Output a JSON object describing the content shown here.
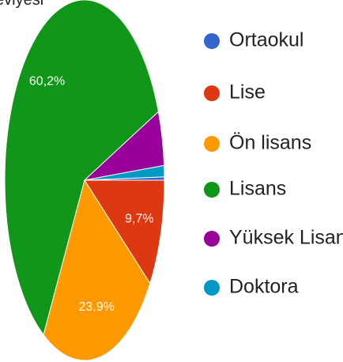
{
  "chart_data": {
    "type": "pie",
    "title": "eviyesi",
    "categories": [
      "Ortaokul",
      "Lise",
      "Ön lisans",
      "Lisans",
      "Yüksek Lisans",
      "Doktora"
    ],
    "values": [
      0.3,
      9.7,
      23.9,
      60.2,
      4.9,
      1.0
    ],
    "value_labels": [
      null,
      "9,7%",
      "23,9%",
      "60,2%",
      null,
      null
    ],
    "colors": [
      "#3366cc",
      "#dc3912",
      "#ff9900",
      "#109618",
      "#990099",
      "#0099c6"
    ],
    "legend": "right"
  }
}
